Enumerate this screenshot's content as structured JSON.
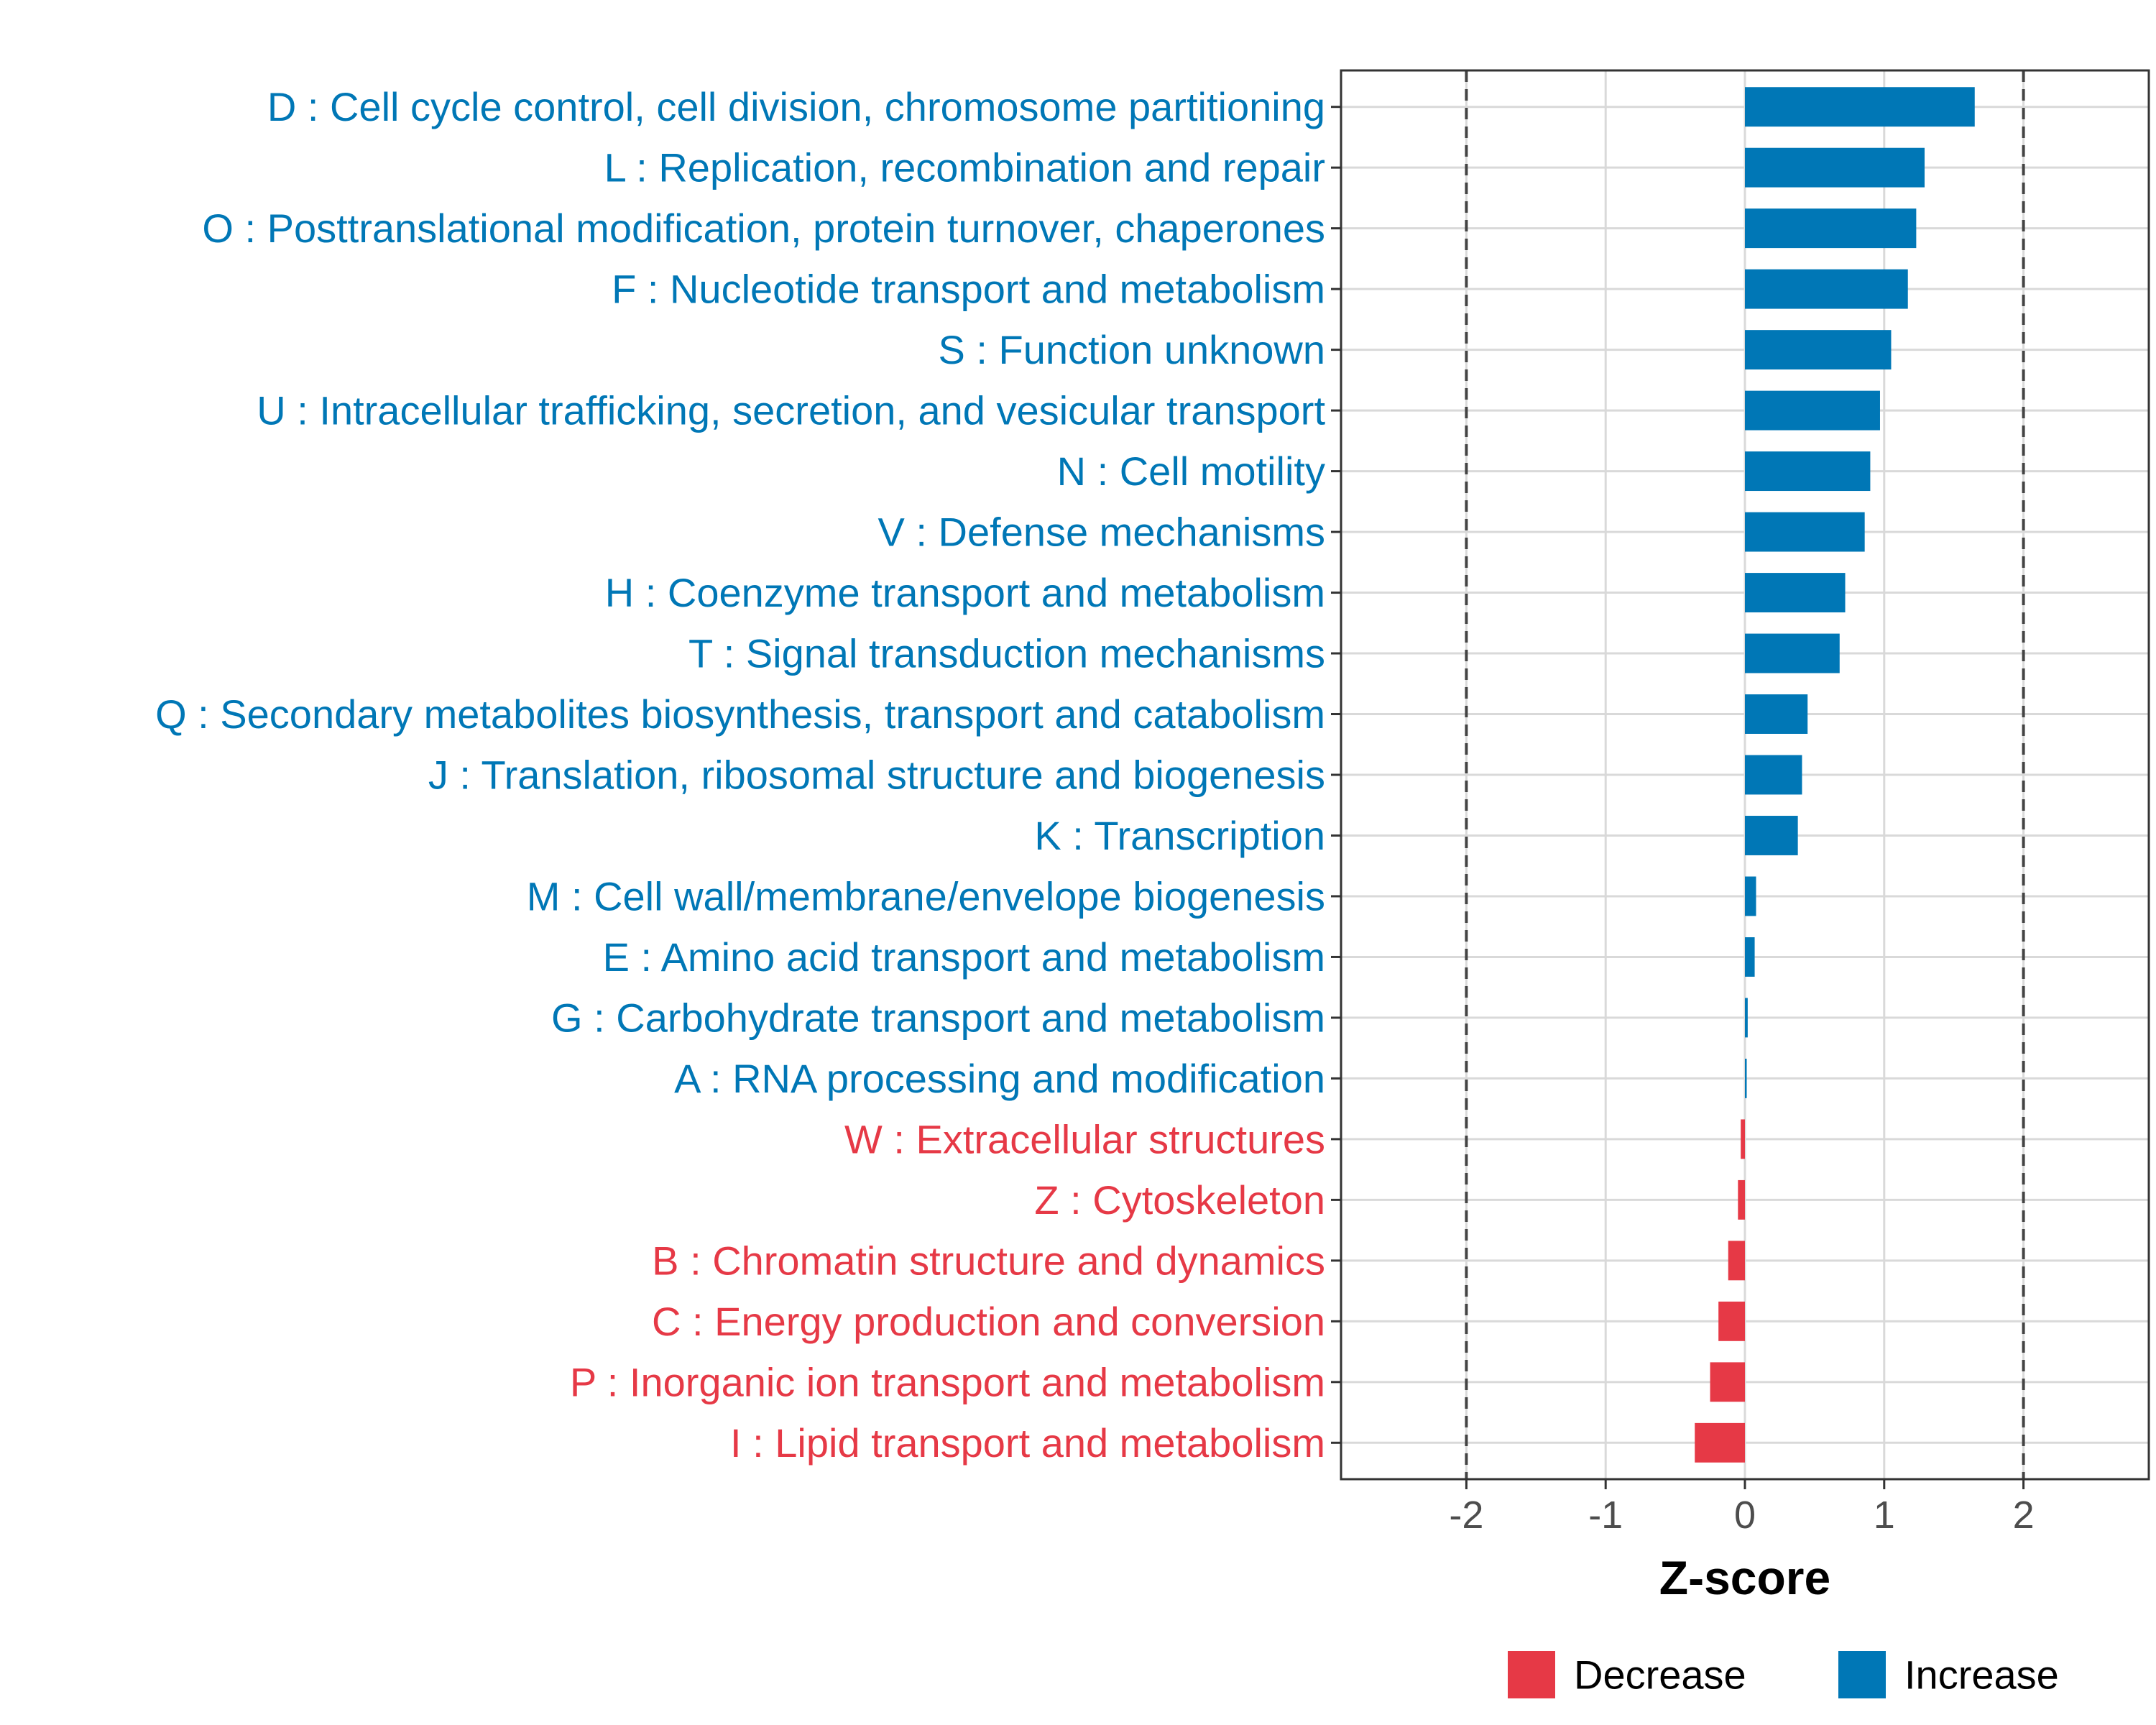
{
  "chart_data": {
    "type": "bar",
    "orientation": "horizontal",
    "xlabel": "Z-score",
    "ylabel": "",
    "xlim": [
      -2.9,
      2.9
    ],
    "x_ticks": [
      -2,
      -1,
      0,
      1,
      2
    ],
    "x_tick_labels": [
      "-2",
      "-1",
      "0",
      "1",
      "2"
    ],
    "reference_lines": [
      -2,
      2
    ],
    "grid": true,
    "legend_position": "bottom",
    "legend": [
      {
        "label": "Decrease",
        "color": "#e63946"
      },
      {
        "label": "Increase",
        "color": "#0077b6"
      }
    ],
    "categories": [
      "D : Cell cycle control, cell division, chromosome partitioning",
      "L : Replication, recombination and repair",
      "O : Posttranslational modification, protein turnover, chaperones",
      "F : Nucleotide transport and metabolism",
      "S : Function unknown",
      "U : Intracellular trafficking, secretion, and vesicular transport",
      "N : Cell motility",
      "V : Defense mechanisms",
      "H : Coenzyme transport and metabolism",
      "T : Signal transduction mechanisms",
      "Q : Secondary metabolites biosynthesis, transport and catabolism",
      "J : Translation, ribosomal structure and biogenesis",
      "K : Transcription",
      "M : Cell wall/membrane/envelope biogenesis",
      "E : Amino acid transport and metabolism",
      "G : Carbohydrate transport and metabolism",
      "A : RNA processing and modification",
      "W : Extracellular structures",
      "Z : Cytoskeleton",
      "B : Chromatin structure and dynamics",
      "C : Energy production and conversion",
      "P : Inorganic ion transport and metabolism",
      "I : Lipid transport and metabolism"
    ],
    "values": [
      1.65,
      1.29,
      1.23,
      1.17,
      1.05,
      0.97,
      0.9,
      0.86,
      0.72,
      0.68,
      0.45,
      0.41,
      0.38,
      0.08,
      0.07,
      0.02,
      0.01,
      -0.03,
      -0.05,
      -0.12,
      -0.19,
      -0.25,
      -0.36
    ]
  }
}
